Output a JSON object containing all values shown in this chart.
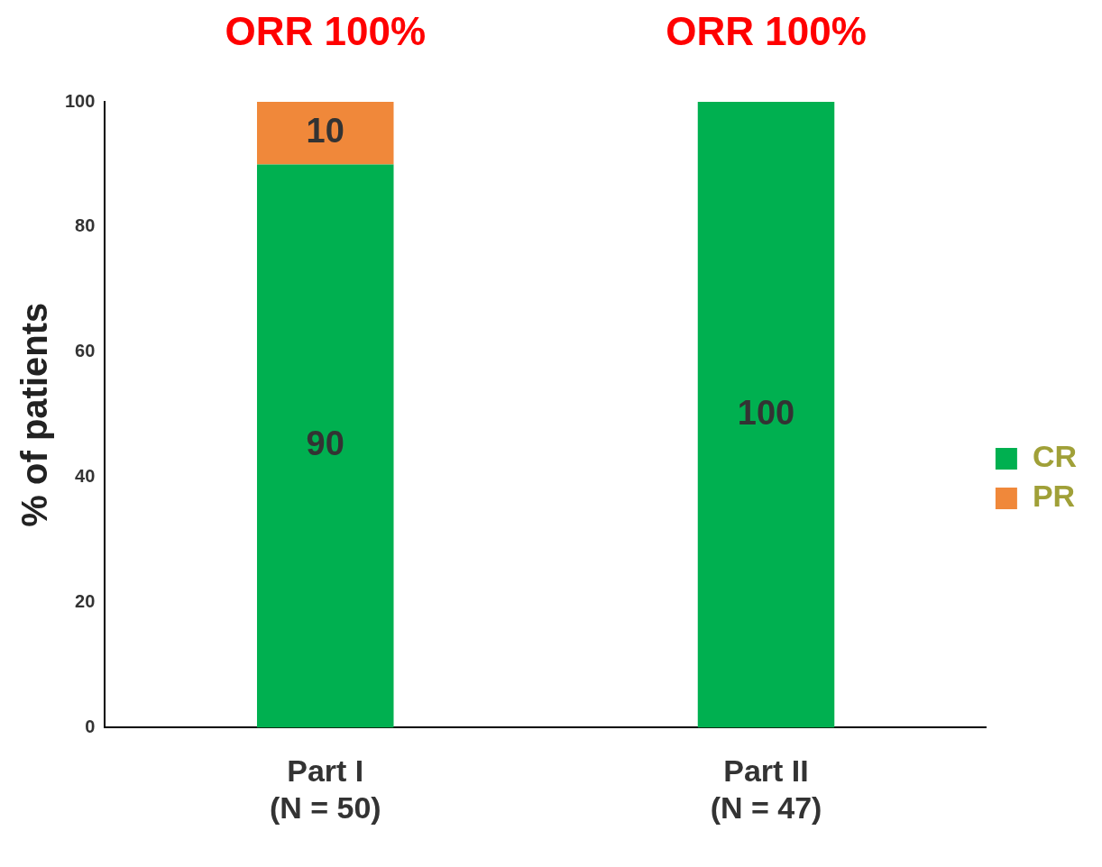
{
  "chart_data": {
    "type": "bar",
    "stacked": true,
    "categories": [
      "Part I\n(N = 50)",
      "Part II\n(N = 47)"
    ],
    "series": [
      {
        "name": "CR",
        "color": "#00b050",
        "values": [
          90,
          100
        ]
      },
      {
        "name": "PR",
        "color": "#f0883a",
        "values": [
          10,
          null
        ]
      }
    ],
    "ylabel": "% of patients",
    "ylim": [
      0,
      100
    ],
    "yticks": [
      0,
      20,
      40,
      60,
      80,
      100
    ],
    "grid": false,
    "legend": "right",
    "data_labels": true,
    "annotations": [
      "ORR 100%",
      "ORR 100%"
    ]
  }
}
